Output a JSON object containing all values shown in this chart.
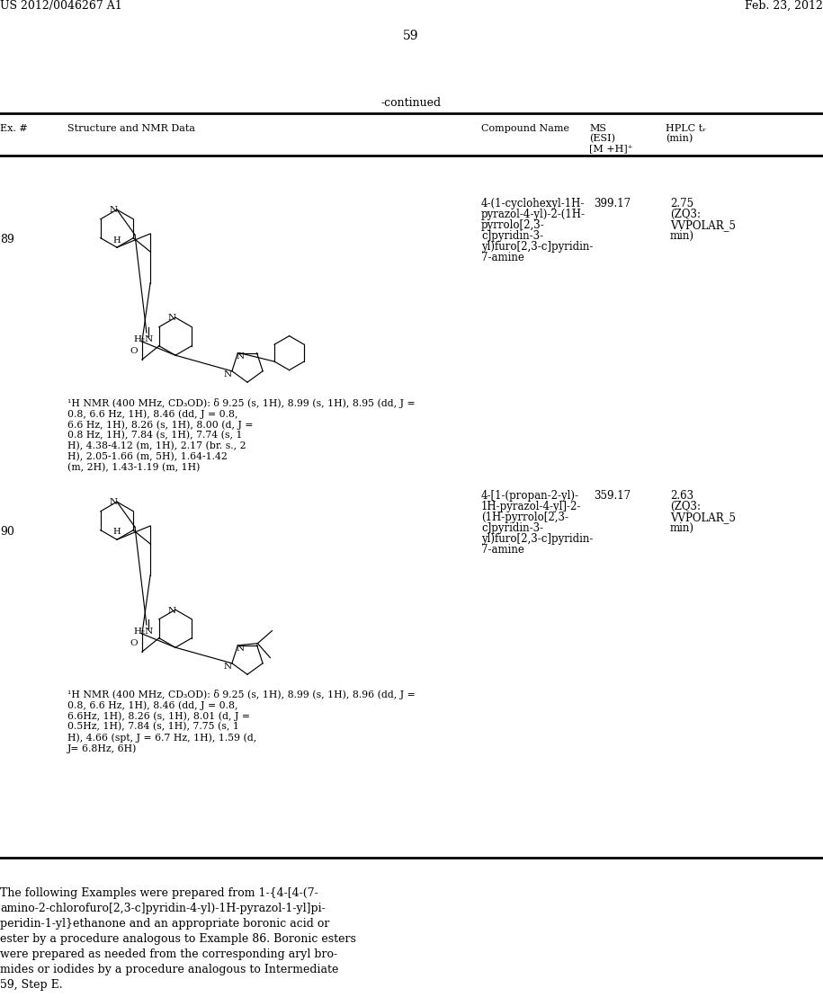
{
  "bg_color": "#ffffff",
  "header_left": "US 2012/0046267 A1",
  "header_right": "Feb. 23, 2012",
  "page_number": "59",
  "continued_label": "-continued",
  "entry89": {
    "ex_num": "89",
    "compound_name_lines": [
      "4-(1-cyclohexyl-1H-",
      "pyrazol-4-yl)-2-(1H-",
      "pyrrolo[2,3-",
      "c]pyridin-3-",
      "yl)furo[2,3-c]pyridin-",
      "7-amine"
    ],
    "ms": "399.17",
    "hplc": "2.75",
    "hplc_method": "(ZQ3:",
    "hplc_method2": "VVPOLAR_5",
    "hplc_method3": "min)",
    "nmr": "¹H NMR (400 MHz, CD₃OD): δ 9.25 (s, 1H), 8.99 (s, 1H), 8.95 (dd, J =\n0.8, 6.6 Hz, 1H), 8.46 (dd, J = 0.8,\n6.6 Hz, 1H), 8.26 (s, 1H), 8.00 (d, J =\n0.8 Hz, 1H), 7.84 (s, 1H), 7.74 (s, 1\nH), 4.38-4.12 (m, 1H), 2.17 (br. s., 2\nH), 2.05-1.66 (m, 5H), 1.64-1.42\n(m, 2H), 1.43-1.19 (m, 1H)"
  },
  "entry90": {
    "ex_num": "90",
    "compound_name_lines": [
      "4-[1-(propan-2-yl)-",
      "1H-pyrazol-4-yl]-2-",
      "(1H-pyrrolo[2,3-",
      "c]pyridin-3-",
      "yl)furo[2,3-c]pyridin-",
      "7-amine"
    ],
    "ms": "359.17",
    "hplc": "2.63",
    "hplc_method": "(ZQ3:",
    "hplc_method2": "VVPOLAR_5",
    "hplc_method3": "min)",
    "nmr": "¹H NMR (400 MHz, CD₃OD): δ 9.25 (s, 1H), 8.99 (s, 1H), 8.96 (dd, J =\n0.8, 6.6 Hz, 1H), 8.46 (dd, J = 0.8,\n6.6Hz, 1H), 8.26 (s, 1H), 8.01 (d, J =\n0.5Hz, 1H), 7.84 (s, 1H), 7.75 (s, 1\nH), 4.66 (spt, J = 6.7 Hz, 1H), 1.59 (d,\nJ= 6.8Hz, 6H)"
  },
  "footer_text_lines": [
    "The following Examples were prepared from 1-{4-[4-(7-",
    "amino-2-chlorofuro[2,3-c]pyridin-4-yl)-1H-pyrazol-1-yl]pi-",
    "peridin-1-yl}ethanone and an appropriate boronic acid or",
    "ester by a procedure analogous to Example 86. Boronic esters",
    "were prepared as needed from the corresponding aryl bro-",
    "mides or iodides by a procedure analogous to Intermediate",
    "59, Step E."
  ]
}
